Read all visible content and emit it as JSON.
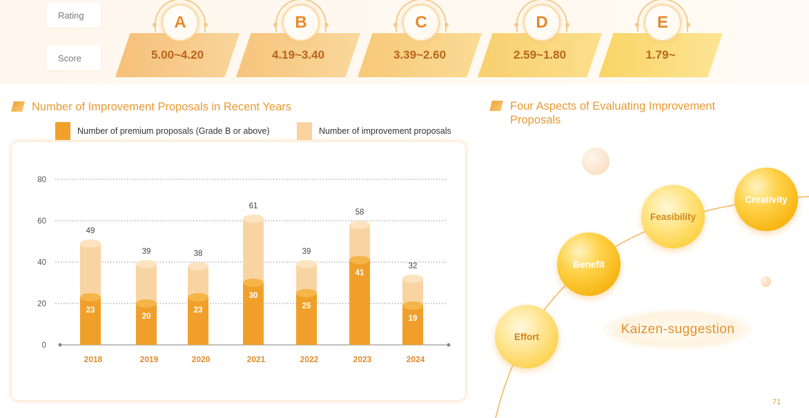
{
  "rating_table": {
    "rating_label": "Rating",
    "score_label": "Score",
    "grades": [
      {
        "grade": "A",
        "score": "5.00~4.20"
      },
      {
        "grade": "B",
        "score": "4.19~3.40"
      },
      {
        "grade": "C",
        "score": "3.39~2.60"
      },
      {
        "grade": "D",
        "score": "2.59~1.80"
      },
      {
        "grade": "E",
        "score": "1.79~"
      }
    ]
  },
  "left_section": {
    "title": "Number of Improvement Proposals in Recent Years"
  },
  "right_section": {
    "title_line1": "Four Aspects of Evaluating Improvement",
    "title_line2": "Proposals",
    "aspects": [
      "Effort",
      "Benefit",
      "Feasibility",
      "Creativity"
    ],
    "center_label": "Kaizen-suggestion"
  },
  "page_number": "71",
  "colors": {
    "premium": "#f0a02a",
    "improvement": "#fad3a0",
    "accent": "#e79a33"
  },
  "chart_data": {
    "type": "bar",
    "categories": [
      "2018",
      "2019",
      "2020",
      "2021",
      "2022",
      "2023",
      "2024"
    ],
    "series": [
      {
        "name": "Number of premium proposals (Grade B or above)",
        "values": [
          23,
          20,
          23,
          30,
          25,
          41,
          19
        ]
      },
      {
        "name": "Number of improvement proposals",
        "values": [
          49,
          39,
          38,
          61,
          39,
          58,
          32
        ]
      }
    ],
    "yticks": [
      "0",
      "20",
      "40",
      "60",
      "80"
    ],
    "ylim": [
      0,
      80
    ],
    "grid": true,
    "legend_position": "top"
  }
}
